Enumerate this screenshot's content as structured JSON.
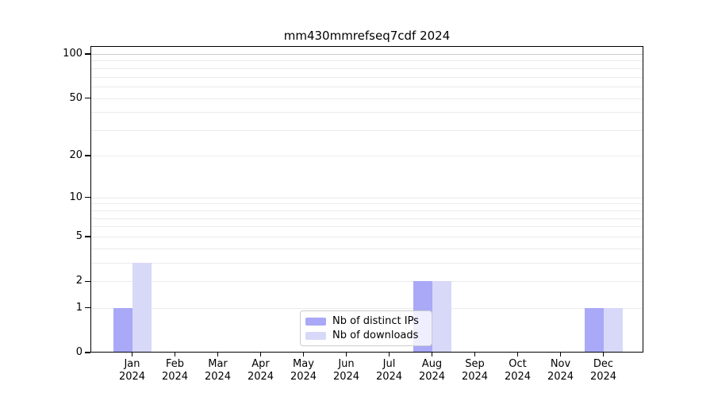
{
  "chart_data": {
    "type": "bar",
    "title": "mm430mmrefseq7cdf 2024",
    "categories": [
      "Jan",
      "Feb",
      "Mar",
      "Apr",
      "May",
      "Jun",
      "Jul",
      "Aug",
      "Sep",
      "Oct",
      "Nov",
      "Dec"
    ],
    "x_tick_year": "2024",
    "series": [
      {
        "name": "Nb of distinct IPs",
        "color": "#a9a9f7",
        "values": [
          1,
          0,
          0,
          0,
          0,
          0,
          0,
          2,
          0,
          0,
          0,
          1
        ]
      },
      {
        "name": "Nb of downloads",
        "color": "#d8d8f8",
        "values": [
          3,
          0,
          0,
          0,
          0,
          0,
          0,
          2,
          0,
          0,
          0,
          1
        ]
      }
    ],
    "yscale": "log1p",
    "ylim": [
      0,
      113
    ],
    "y_ticks": [
      0,
      1,
      2,
      5,
      10,
      20,
      50,
      100
    ],
    "minor_gridlines": [
      1,
      2,
      3,
      4,
      5,
      6,
      7,
      8,
      9,
      10,
      20,
      30,
      40,
      50,
      60,
      70,
      80,
      90
    ],
    "major_gridlines": [
      100
    ],
    "legend_position": "lower-center-inside",
    "colors": {
      "axis": "#000000",
      "grid_minor": "#ebebeb",
      "grid_major": "#c9c9c9",
      "background": "#ffffff"
    }
  }
}
